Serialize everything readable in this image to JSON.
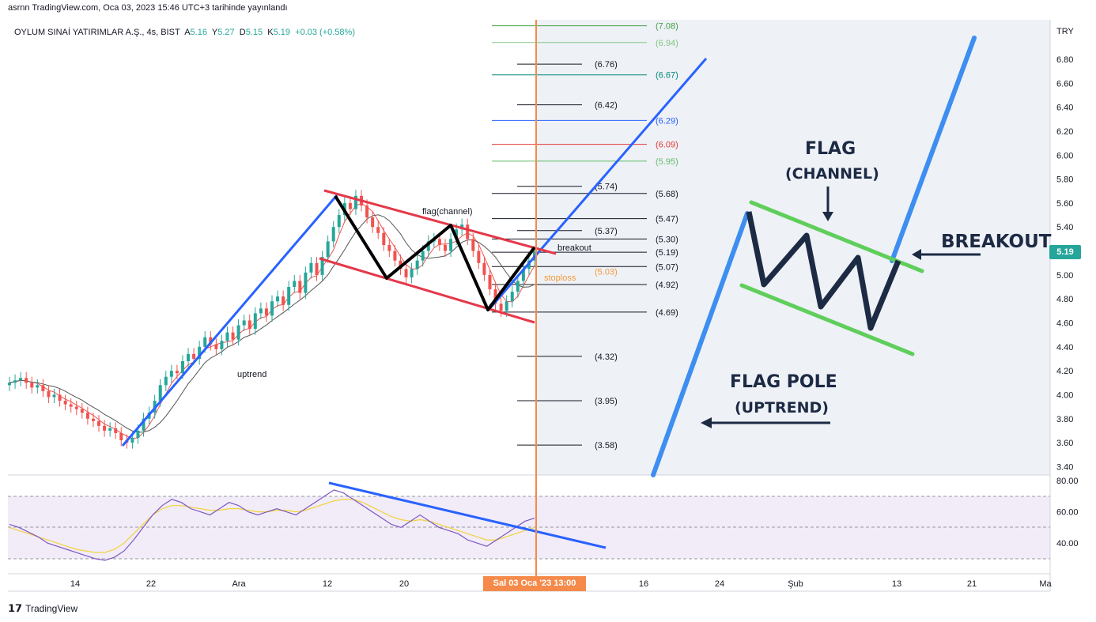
{
  "header": {
    "published": "asrnn TradingView.com, Oca 03, 2023 15:46 UTC+3 tarihinde yayınlandı"
  },
  "symbol": {
    "name": "OYLUM SINAİ YATIRIMLAR A.Ş., 4s, BIST",
    "open_label": "A",
    "open": "5.16",
    "high_label": "Y",
    "high": "5.27",
    "low_label": "D",
    "low": "5.15",
    "close_label": "K",
    "close": "5.19",
    "change": "+0.03 (+0.58%)"
  },
  "currency": "TRY",
  "current_price": "5.19",
  "crosshair_date": "Sal 03 Oca '23   13:00",
  "footer": {
    "brand": "TradingView"
  },
  "colors": {
    "up": "#26a69a",
    "down": "#ef5350",
    "blue_line": "#2962ff",
    "channel_red": "#e5384a",
    "zigzag": "#000000",
    "illus_blue": "#3d8ef0",
    "illus_green": "#5fce5b",
    "illus_dark": "#1d2a44",
    "marker": "#f58a4a",
    "rsi": "#7e57c2",
    "rsi_ma": "#f2d23a",
    "ma_red": "#ef5350",
    "ma_dark": "#555555"
  },
  "chart_data": {
    "type": "candlestick",
    "y_axis": {
      "ticks": [
        "6.80",
        "6.60",
        "6.40",
        "6.20",
        "6.00",
        "5.80",
        "5.60",
        "5.40",
        "5.20",
        "5.00",
        "4.80",
        "4.60",
        "4.40",
        "4.20",
        "4.00",
        "3.80",
        "3.60",
        "3.40"
      ],
      "ylim": [
        3.33,
        7.13
      ]
    },
    "x_axis": {
      "ticks": [
        "14",
        "22",
        "Ara",
        "12",
        "20",
        "16",
        "24",
        "Şub",
        "13",
        "21",
        "Ma"
      ]
    },
    "closes": [
      4.1,
      4.12,
      4.14,
      4.1,
      4.06,
      4.08,
      4.03,
      3.98,
      4.0,
      3.95,
      3.92,
      3.9,
      3.88,
      3.85,
      3.8,
      3.78,
      3.74,
      3.7,
      3.72,
      3.68,
      3.62,
      3.6,
      3.64,
      3.7,
      3.8,
      3.85,
      3.95,
      4.08,
      4.15,
      4.2,
      4.18,
      4.28,
      4.34,
      4.3,
      4.4,
      4.48,
      4.42,
      4.38,
      4.45,
      4.52,
      4.46,
      4.58,
      4.62,
      4.55,
      4.68,
      4.72,
      4.66,
      4.78,
      4.82,
      4.75,
      4.9,
      4.95,
      4.85,
      5.02,
      5.1,
      5.0,
      5.15,
      5.28,
      5.4,
      5.5,
      5.6,
      5.55,
      5.66,
      5.58,
      5.48,
      5.4,
      5.35,
      5.25,
      5.2,
      5.12,
      5.05,
      4.98,
      5.05,
      5.12,
      5.2,
      5.28,
      5.3,
      5.25,
      5.2,
      5.3,
      5.38,
      5.42,
      5.3,
      5.2,
      5.1,
      5.0,
      4.88,
      4.76,
      4.7,
      4.78,
      4.86,
      4.95,
      5.05,
      5.12,
      5.19
    ],
    "ohlc_current": {
      "open": 5.16,
      "high": 5.27,
      "low": 5.15,
      "close": 5.19
    },
    "levels": [
      {
        "label": "(7.08)",
        "color": "#43a047"
      },
      {
        "label": "(6.94)",
        "color": "#81c784"
      },
      {
        "label": "(6.76)",
        "color": "#131722"
      },
      {
        "label": "(6.67)",
        "color": "#00897b"
      },
      {
        "label": "(6.42)",
        "color": "#131722"
      },
      {
        "label": "(6.29)",
        "color": "#2962ff"
      },
      {
        "label": "(6.09)",
        "color": "#e53935"
      },
      {
        "label": "(5.95)",
        "color": "#66bb6a"
      },
      {
        "label": "(5.74)",
        "color": "#131722"
      },
      {
        "label": "(5.68)",
        "color": "#131722"
      },
      {
        "label": "(5.47)",
        "color": "#131722"
      },
      {
        "label": "(5.37)",
        "color": "#131722"
      },
      {
        "label": "(5.30)",
        "color": "#131722"
      },
      {
        "label": "(5.19)",
        "color": "#131722"
      },
      {
        "label": "(5.07)",
        "color": "#131722"
      },
      {
        "label": "(5.03)",
        "color": "#f59b3c"
      },
      {
        "label": "(4.92)",
        "color": "#131722"
      },
      {
        "label": "(4.69)",
        "color": "#131722"
      },
      {
        "label": "(4.32)",
        "color": "#131722"
      },
      {
        "label": "(3.95)",
        "color": "#131722"
      },
      {
        "label": "(3.58)",
        "color": "#131722"
      }
    ],
    "annotations": {
      "uptrend": "uptrend",
      "flag": "flag(channel)",
      "breakout": "breakout",
      "stoploss": "stoploss"
    },
    "rsi": {
      "ticks": [
        "80.00",
        "60.00",
        "40.00"
      ],
      "values": [
        52,
        50,
        47,
        44,
        40,
        38,
        36,
        34,
        32,
        30,
        29,
        31,
        35,
        42,
        50,
        58,
        64,
        68,
        66,
        62,
        60,
        58,
        62,
        66,
        64,
        60,
        58,
        60,
        62,
        60,
        58,
        62,
        66,
        70,
        74,
        72,
        68,
        64,
        60,
        56,
        52,
        50,
        54,
        58,
        54,
        50,
        48,
        46,
        42,
        40,
        38,
        42,
        46,
        50,
        54,
        56
      ],
      "ma_values": [
        50,
        48,
        46,
        44,
        42,
        40,
        38,
        36,
        35,
        34,
        34,
        36,
        40,
        46,
        52,
        58,
        62,
        64,
        64,
        63,
        62,
        61,
        61,
        62,
        62,
        61,
        60,
        60,
        61,
        61,
        60,
        61,
        63,
        65,
        67,
        68,
        68,
        66,
        63,
        60,
        57,
        55,
        54,
        55,
        54,
        52,
        50,
        48,
        46,
        44,
        42,
        42,
        44,
        46,
        48,
        50
      ]
    }
  },
  "illustration": {
    "flag_title": "FLAG",
    "flag_sub": "(CHANNEL)",
    "pole_title": "FLAG POLE",
    "pole_sub": "(UPTREND)",
    "breakout": "BREAKOUT"
  }
}
